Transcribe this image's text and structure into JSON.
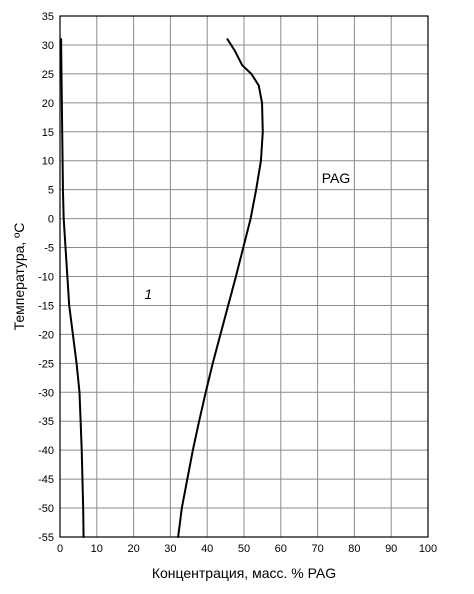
{
  "chart_data": {
    "type": "line",
    "title": "",
    "xlabel": "Концентрация, масс. % PAG",
    "ylabel": "Температура, ºC",
    "xlim": [
      0,
      100
    ],
    "ylim": [
      -55,
      35
    ],
    "xticks": [
      0,
      10,
      20,
      30,
      40,
      50,
      60,
      70,
      80,
      90,
      100
    ],
    "yticks": [
      35,
      30,
      25,
      20,
      15,
      10,
      5,
      0,
      -5,
      -10,
      -15,
      -20,
      -25,
      -30,
      -35,
      -40,
      -45,
      -50,
      -55
    ],
    "xtick_labels": [
      "0",
      "10",
      "20",
      "30",
      "40",
      "50",
      "60",
      "70",
      "80",
      "90",
      "100"
    ],
    "ytick_labels": [
      "35",
      "30",
      "25",
      "20",
      "15",
      "10",
      "5",
      "0",
      "-5",
      "-10",
      "-15",
      "-20",
      "-25",
      "-30",
      "-35",
      "-40",
      "-45",
      "-50",
      "-55"
    ],
    "grid": true,
    "annotations": [
      {
        "text": "PAG",
        "x": 75,
        "y": 7
      },
      {
        "text": "1",
        "x": 24,
        "y": -13
      }
    ],
    "series": [
      {
        "points": [
          [
            0.3,
            31
          ],
          [
            0.4,
            25
          ],
          [
            0.5,
            20
          ],
          [
            0.6,
            15
          ],
          [
            0.7,
            10
          ],
          [
            0.8,
            5
          ],
          [
            1.0,
            0
          ],
          [
            1.5,
            -5
          ],
          [
            2.0,
            -10
          ],
          [
            2.5,
            -15
          ],
          [
            3.5,
            -20
          ],
          [
            4.5,
            -25
          ],
          [
            5.3,
            -30
          ],
          [
            5.6,
            -35
          ],
          [
            5.9,
            -40
          ],
          [
            6.1,
            -45
          ],
          [
            6.3,
            -50
          ],
          [
            6.4,
            -55
          ]
        ]
      },
      {
        "points": [
          [
            45.5,
            31
          ],
          [
            47.5,
            29
          ],
          [
            49.5,
            26.5
          ],
          [
            52,
            25
          ],
          [
            54,
            23
          ],
          [
            54.9,
            20
          ],
          [
            55.1,
            15
          ],
          [
            54.6,
            10
          ],
          [
            53.3,
            5
          ],
          [
            51.8,
            0
          ],
          [
            50.6,
            -3
          ],
          [
            49.8,
            -5
          ],
          [
            47.8,
            -10
          ],
          [
            45.7,
            -15
          ],
          [
            43.6,
            -20
          ],
          [
            41.5,
            -25
          ],
          [
            39.6,
            -30
          ],
          [
            37.8,
            -35
          ],
          [
            36.1,
            -40
          ],
          [
            34.6,
            -45
          ],
          [
            33.1,
            -50
          ],
          [
            32.1,
            -55
          ]
        ]
      }
    ]
  }
}
